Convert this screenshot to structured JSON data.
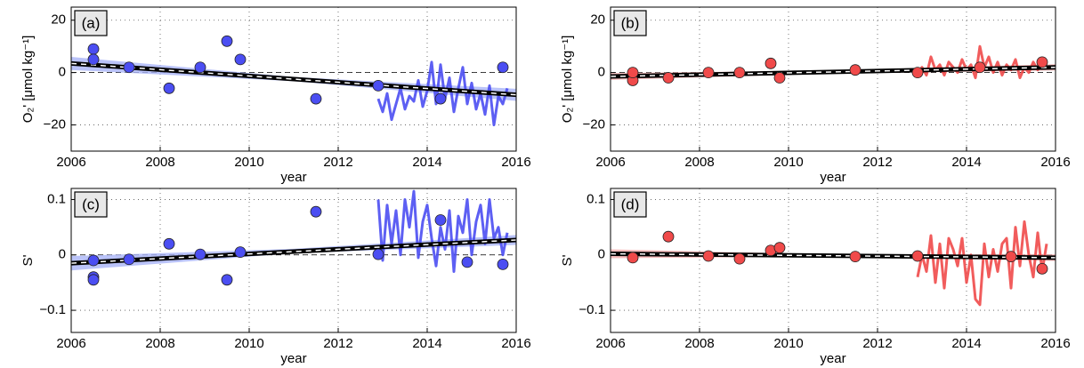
{
  "chart_data": [
    {
      "type": "scatter",
      "panel_label": "(a)",
      "xlabel": "year",
      "ylabel": "O₂' [μmol kg⁻¹]",
      "xlim": [
        2006,
        2016
      ],
      "ylim": [
        -30,
        25
      ],
      "xticks": [
        2006,
        2008,
        2010,
        2012,
        2014,
        2016
      ],
      "yticks": [
        {
          "value": -20,
          "label": "−20"
        },
        0,
        20
      ],
      "grid": true,
      "ref_line": 0,
      "series": [
        {
          "mode": "band",
          "color": "#a9b4f7",
          "x": [
            2006,
            2011,
            2016
          ],
          "lower": [
            1.0,
            -3.3,
            -10.8
          ],
          "upper": [
            6.0,
            -1.7,
            -6.2
          ]
        },
        {
          "mode": "lines",
          "color": "#4b4ef2",
          "x": [
            2012.9,
            2013.0,
            2013.1,
            2013.2,
            2013.3,
            2013.4,
            2013.5,
            2013.6,
            2013.7,
            2013.8,
            2013.9,
            2014.0,
            2014.1,
            2014.2,
            2014.3,
            2014.4,
            2014.5,
            2014.6,
            2014.7,
            2014.8,
            2014.9,
            2015.0,
            2015.1,
            2015.2,
            2015.3,
            2015.4,
            2015.5,
            2015.6,
            2015.7,
            2015.8
          ],
          "values": [
            -10,
            -15,
            -8,
            -18,
            -12,
            -6,
            -14,
            -9,
            -11,
            -3,
            -13,
            -7,
            4,
            -12,
            3,
            -10,
            -2,
            -15,
            -6,
            2,
            -12,
            -4,
            -14,
            -8,
            -16,
            -5,
            -20,
            -9,
            -12,
            -6
          ]
        },
        {
          "mode": "trend",
          "color": "#000000",
          "x": [
            2006,
            2016
          ],
          "values": [
            3.5,
            -8.5
          ]
        },
        {
          "mode": "markers",
          "color": "#4b4ef2",
          "x": [
            2006.5,
            2006.5,
            2007.3,
            2008.2,
            2008.9,
            2009.5,
            2009.8,
            2011.5,
            2012.9,
            2014.3,
            2015.7
          ],
          "values": [
            9,
            5,
            2,
            -6,
            2,
            12,
            5,
            -10,
            -5,
            -10,
            2
          ]
        }
      ]
    },
    {
      "type": "scatter",
      "panel_label": "(b)",
      "xlabel": "year",
      "ylabel": "O₂' [μmol kg⁻¹]",
      "xlim": [
        2006,
        2016
      ],
      "ylim": [
        -30,
        25
      ],
      "xticks": [
        2006,
        2008,
        2010,
        2012,
        2014,
        2016
      ],
      "yticks": [
        {
          "value": -20,
          "label": "−20"
        },
        0,
        20
      ],
      "grid": true,
      "ref_line": 0,
      "series": [
        {
          "mode": "band",
          "color": "#f6aeae",
          "x": [
            2006,
            2011,
            2016
          ],
          "lower": [
            -2.8,
            -0.4,
            0.8
          ],
          "upper": [
            -0.2,
            0.8,
            3.2
          ]
        },
        {
          "mode": "lines",
          "color": "#f04a4a",
          "x": [
            2012.9,
            2013.0,
            2013.1,
            2013.2,
            2013.3,
            2013.4,
            2013.5,
            2013.6,
            2013.7,
            2013.8,
            2013.9,
            2014.0,
            2014.1,
            2014.2,
            2014.3,
            2014.4,
            2014.5,
            2014.6,
            2014.7,
            2014.8,
            2014.9,
            2015.0,
            2015.1,
            2015.2,
            2015.3,
            2015.4,
            2015.5,
            2015.6,
            2015.7,
            2015.8
          ],
          "values": [
            0,
            2,
            -1,
            6,
            1,
            3,
            -1,
            4,
            2,
            0,
            5,
            1,
            3,
            -2,
            10,
            2,
            6,
            0,
            4,
            -1,
            3,
            1,
            5,
            -2,
            2,
            0,
            4,
            1,
            3,
            4
          ]
        },
        {
          "mode": "trend",
          "color": "#000000",
          "x": [
            2006,
            2016
          ],
          "values": [
            -1.5,
            2
          ]
        },
        {
          "mode": "markers",
          "color": "#f04a4a",
          "x": [
            2006.5,
            2006.5,
            2007.3,
            2008.2,
            2008.9,
            2009.6,
            2009.8,
            2011.5,
            2012.9,
            2014.3,
            2015.7
          ],
          "values": [
            -3,
            0,
            -2,
            0,
            0,
            3.5,
            -2,
            1,
            0,
            2,
            4
          ]
        }
      ]
    },
    {
      "type": "scatter",
      "panel_label": "(c)",
      "xlabel": "year",
      "ylabel": "S'",
      "xlim": [
        2006,
        2016
      ],
      "ylim": [
        -0.14,
        0.12
      ],
      "xticks": [
        2006,
        2008,
        2010,
        2012,
        2014,
        2016
      ],
      "yticks": [
        {
          "value": -0.1,
          "label": "−0.1"
        },
        0,
        0.1
      ],
      "grid": true,
      "ref_line": 0,
      "series": [
        {
          "mode": "band",
          "color": "#a9b4f7",
          "x": [
            2006,
            2011,
            2016
          ],
          "lower": [
            -0.028,
            0.003,
            0.018
          ],
          "upper": [
            -0.002,
            0.011,
            0.036
          ]
        },
        {
          "mode": "lines",
          "color": "#4b4ef2",
          "x": [
            2012.9,
            2013.0,
            2013.1,
            2013.2,
            2013.3,
            2013.4,
            2013.5,
            2013.6,
            2013.7,
            2013.8,
            2013.9,
            2014.0,
            2014.1,
            2014.2,
            2014.3,
            2014.4,
            2014.5,
            2014.6,
            2014.7,
            2014.8,
            2014.9,
            2015.0,
            2015.1,
            2015.2,
            2015.3,
            2015.4,
            2015.5,
            2015.6,
            2015.7,
            2015.8
          ],
          "values": [
            0.1,
            -0.01,
            0.09,
            0.02,
            0.08,
            0.0,
            0.1,
            0.05,
            0.115,
            -0.005,
            0.06,
            0.09,
            0.03,
            -0.02,
            0.05,
            0.01,
            0.08,
            -0.03,
            0.07,
            0.04,
            0.1,
            0.0,
            0.06,
            0.09,
            0.02,
            0.1,
            0.03,
            0.05,
            0.0,
            0.04
          ]
        },
        {
          "mode": "trend",
          "color": "#000000",
          "x": [
            2006,
            2016
          ],
          "values": [
            -0.015,
            0.027
          ]
        },
        {
          "mode": "markers",
          "color": "#4b4ef2",
          "x": [
            2006.5,
            2006.5,
            2006.5,
            2007.3,
            2008.2,
            2008.9,
            2009.5,
            2009.8,
            2011.5,
            2012.9,
            2014.3,
            2014.9,
            2015.7
          ],
          "values": [
            -0.01,
            -0.04,
            -0.045,
            -0.008,
            0.02,
            0.001,
            -0.045,
            0.005,
            0.078,
            0.001,
            0.063,
            -0.013,
            -0.017
          ]
        }
      ]
    },
    {
      "type": "scatter",
      "panel_label": "(d)",
      "xlabel": "year",
      "ylabel": "S'",
      "xlim": [
        2006,
        2016
      ],
      "ylim": [
        -0.14,
        0.12
      ],
      "xticks": [
        2006,
        2008,
        2010,
        2012,
        2014,
        2016
      ],
      "yticks": [
        {
          "value": -0.1,
          "label": "−0.1"
        },
        0,
        0.1
      ],
      "grid": true,
      "ref_line": 0,
      "series": [
        {
          "mode": "band",
          "color": "#f6aeae",
          "x": [
            2006,
            2011,
            2016
          ],
          "lower": [
            -0.006,
            -0.003,
            -0.011
          ],
          "upper": [
            0.01,
            0.001,
            0.001
          ]
        },
        {
          "mode": "lines",
          "color": "#f04a4a",
          "x": [
            2012.9,
            2013.0,
            2013.1,
            2013.2,
            2013.3,
            2013.4,
            2013.5,
            2013.6,
            2013.7,
            2013.8,
            2013.9,
            2014.0,
            2014.1,
            2014.2,
            2014.3,
            2014.4,
            2014.5,
            2014.6,
            2014.7,
            2014.8,
            2014.9,
            2015.0,
            2015.1,
            2015.2,
            2015.3,
            2015.4,
            2015.5,
            2015.6,
            2015.7,
            2015.8
          ],
          "values": [
            -0.04,
            0.0,
            -0.03,
            0.035,
            -0.05,
            0.02,
            -0.06,
            0.03,
            0.01,
            -0.02,
            0.03,
            -0.05,
            0.0,
            -0.08,
            -0.09,
            0.02,
            -0.04,
            0.01,
            -0.03,
            0.02,
            0.03,
            -0.06,
            0.05,
            -0.02,
            0.06,
            0.0,
            -0.04,
            0.04,
            -0.03,
            0.02
          ]
        },
        {
          "mode": "trend",
          "color": "#000000",
          "x": [
            2006,
            2016
          ],
          "values": [
            0.002,
            -0.005
          ]
        },
        {
          "mode": "markers",
          "color": "#f04a4a",
          "x": [
            2006.5,
            2007.3,
            2008.2,
            2008.9,
            2009.6,
            2009.8,
            2011.5,
            2012.9,
            2015.0,
            2015.7
          ],
          "values": [
            -0.005,
            0.033,
            -0.002,
            -0.007,
            0.008,
            0.013,
            -0.003,
            -0.002,
            -0.003,
            -0.025
          ]
        }
      ]
    }
  ]
}
